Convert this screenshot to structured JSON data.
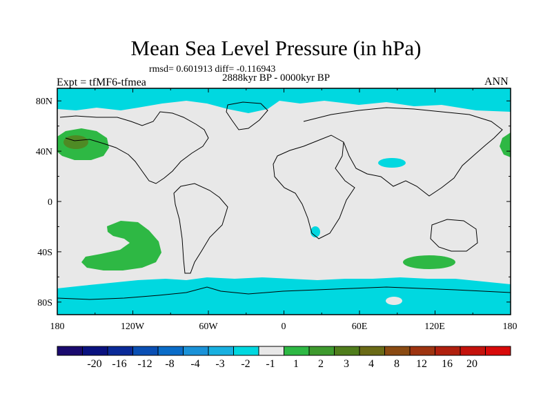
{
  "title": "Mean Sea Level Pressure (in hPa)",
  "stats_line": "rmsd= 0.601913 diff= -0.116943",
  "period": "2888kyr BP - 0000kyr BP",
  "experiment": "Expt = tfMF6-tfmea",
  "season": "ANN",
  "colors": {
    "land_neutral": "#e8e8e8",
    "cyan": "#00d8e0",
    "light_green": "#2eb844",
    "dark_green": "#4e8a24",
    "coast": "#000000"
  },
  "map": {
    "projection": "cylindrical equidistant",
    "lat_range": [
      -90,
      90
    ],
    "lon_range": [
      -180,
      180
    ],
    "y_tick_labels": [
      "80N",
      "40N",
      "0",
      "40S",
      "80S"
    ],
    "x_tick_labels": [
      "180",
      "120W",
      "60W",
      "0",
      "60E",
      "120E",
      "180"
    ]
  },
  "colorbar": {
    "colors": [
      "#1a0a6e",
      "#0a127f",
      "#0a2a98",
      "#0a4fb4",
      "#0a6cc8",
      "#1a92d8",
      "#18b0e0",
      "#00d8e0",
      "#e8e8e8",
      "#2eb844",
      "#3e9a2e",
      "#4f7d1c",
      "#6a6a16",
      "#8a4a12",
      "#9e3410",
      "#b0200e",
      "#c4120c",
      "#d80a0a"
    ],
    "labels": [
      "-20",
      "-16",
      "-12",
      "-8",
      "-4",
      "-3",
      "-2",
      "-1",
      "1",
      "2",
      "3",
      "4",
      "8",
      "12",
      "16",
      "20"
    ]
  }
}
